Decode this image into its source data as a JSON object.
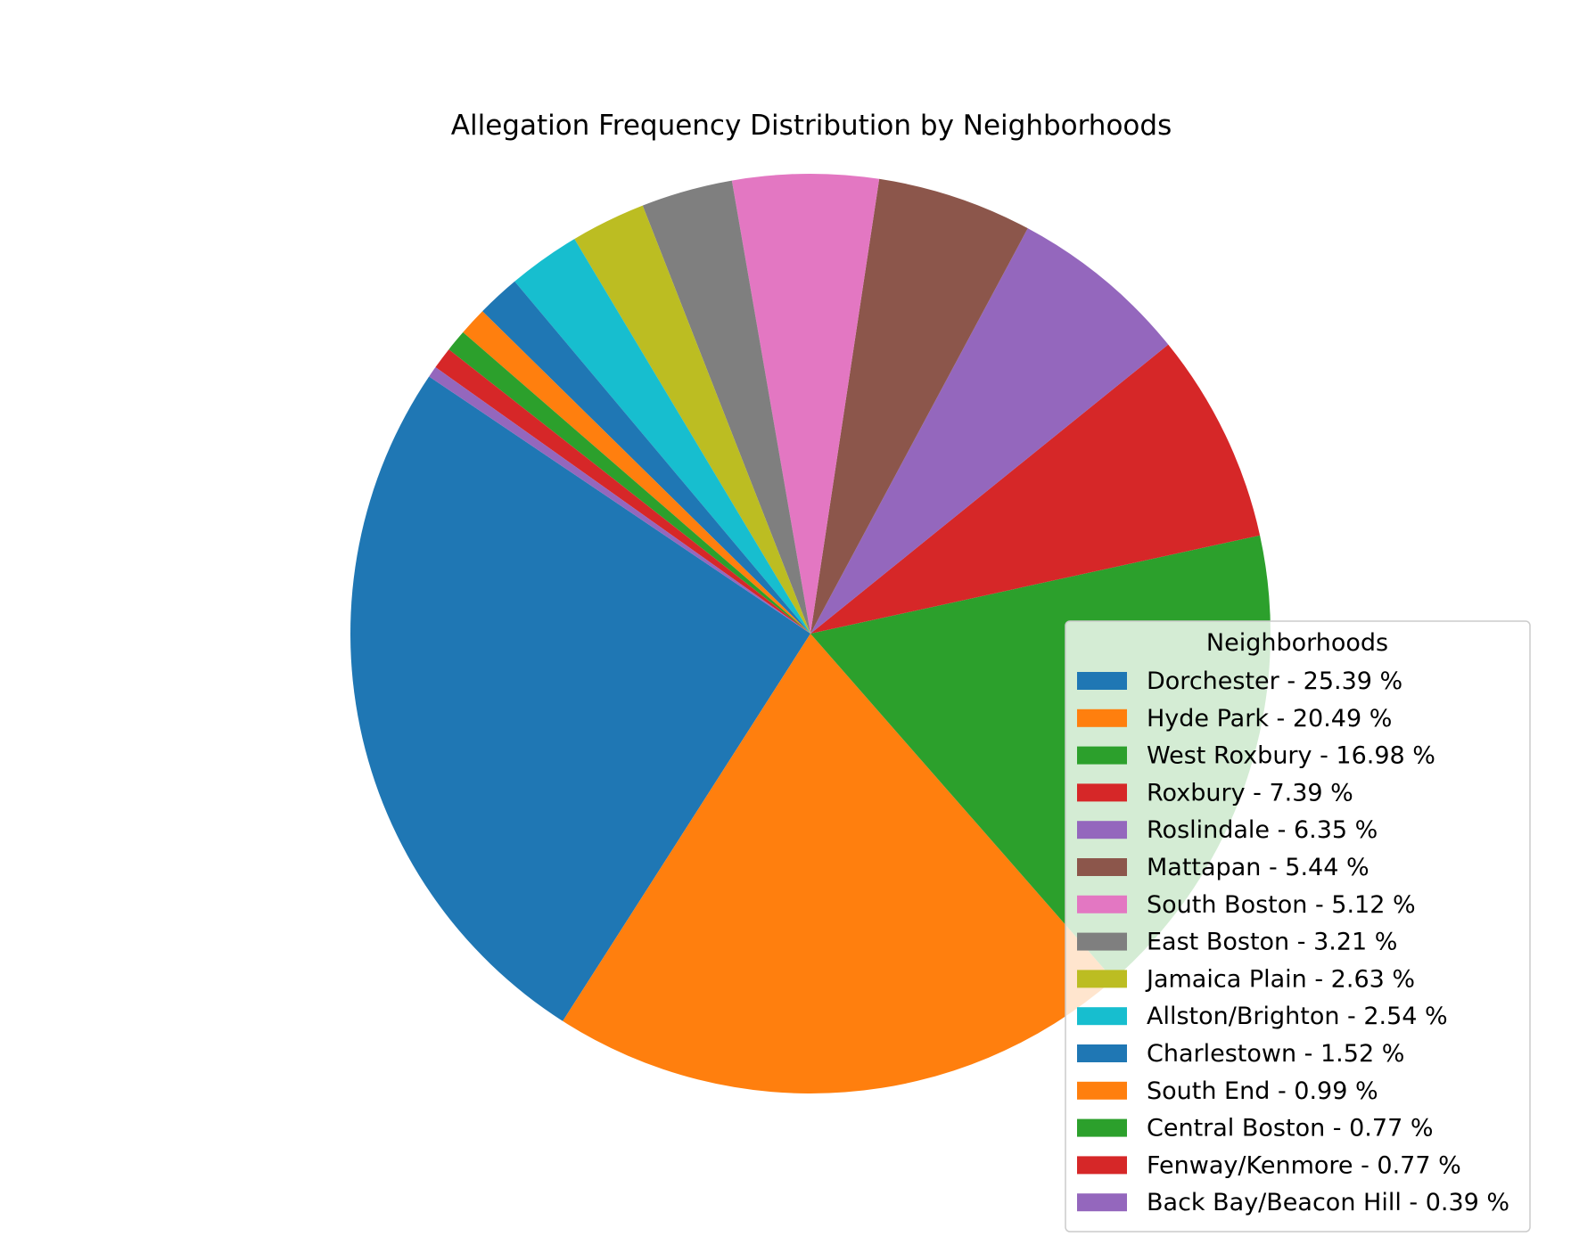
{
  "chart_data": {
    "type": "pie",
    "title": "Allegation Frequency Distribution by Neighborhoods",
    "legend_title": "Neighborhoods",
    "legend_placement": "lower-right",
    "start_angle_deg": 146,
    "direction": "counterclockwise",
    "slices": [
      {
        "name": "Dorchester",
        "value": 25.39,
        "label": "Dorchester - 25.39 %",
        "color": "#1f77b4"
      },
      {
        "name": "Hyde Park",
        "value": 20.49,
        "label": "Hyde Park - 20.49 %",
        "color": "#ff7f0e"
      },
      {
        "name": "West Roxbury",
        "value": 16.98,
        "label": "West Roxbury - 16.98 %",
        "color": "#2ca02c"
      },
      {
        "name": "Roxbury",
        "value": 7.39,
        "label": "Roxbury - 7.39 %",
        "color": "#d62728"
      },
      {
        "name": "Roslindale",
        "value": 6.35,
        "label": "Roslindale - 6.35 %",
        "color": "#9467bd"
      },
      {
        "name": "Mattapan",
        "value": 5.44,
        "label": "Mattapan - 5.44 %",
        "color": "#8c564b"
      },
      {
        "name": "South Boston",
        "value": 5.12,
        "label": "South Boston - 5.12 %",
        "color": "#e377c2"
      },
      {
        "name": "East Boston",
        "value": 3.21,
        "label": "East Boston - 3.21 %",
        "color": "#7f7f7f"
      },
      {
        "name": "Jamaica Plain",
        "value": 2.63,
        "label": "Jamaica Plain - 2.63 %",
        "color": "#bcbd22"
      },
      {
        "name": "Allston/Brighton",
        "value": 2.54,
        "label": "Allston/Brighton - 2.54 %",
        "color": "#17becf"
      },
      {
        "name": "Charlestown",
        "value": 1.52,
        "label": "Charlestown - 1.52 %",
        "color": "#1f77b4"
      },
      {
        "name": "South End",
        "value": 0.99,
        "label": "South End - 0.99 %",
        "color": "#ff7f0e"
      },
      {
        "name": "Central Boston",
        "value": 0.77,
        "label": "Central Boston - 0.77 %",
        "color": "#2ca02c"
      },
      {
        "name": "Fenway/Kenmore",
        "value": 0.77,
        "label": "Fenway/Kenmore - 0.77 %",
        "color": "#d62728"
      },
      {
        "name": "Back Bay/Beacon Hill",
        "value": 0.39,
        "label": "Back Bay/Beacon Hill - 0.39 %",
        "color": "#9467bd"
      }
    ]
  }
}
